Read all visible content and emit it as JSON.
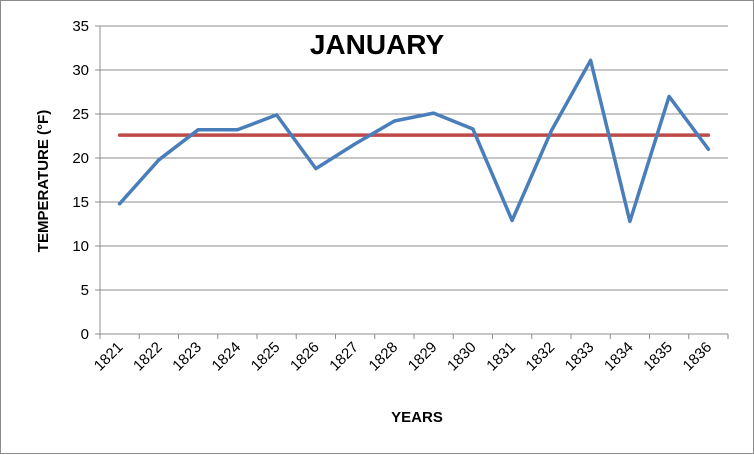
{
  "chart_data": {
    "type": "line",
    "title": "JANUARY",
    "xlabel": "YEARS",
    "ylabel": "TEMPERATURE (°F)",
    "ylim": [
      0,
      35
    ],
    "yticks": [
      "0",
      "5",
      "10",
      "15",
      "20",
      "25",
      "30",
      "35"
    ],
    "grid": "horizontal",
    "categories": [
      "1821",
      "1822",
      "1823",
      "1824",
      "1825",
      "1826",
      "1827",
      "1828",
      "1829",
      "1830",
      "1831",
      "1832",
      "1833",
      "1834",
      "1835",
      "1836"
    ],
    "series": [
      {
        "values": [
          14.8,
          19.8,
          23.2,
          23.2,
          24.9,
          18.8,
          21.6,
          24.2,
          25.1,
          23.3,
          12.9,
          23.1,
          31.1,
          12.8,
          27.0,
          21.0
        ],
        "color": "#4a7ebb"
      },
      {
        "values": [
          22.6,
          22.6,
          22.6,
          22.6,
          22.6,
          22.6,
          22.6,
          22.6,
          22.6,
          22.6,
          22.6,
          22.6,
          22.6,
          22.6,
          22.6,
          22.6
        ],
        "color": "#be4b48"
      }
    ]
  }
}
